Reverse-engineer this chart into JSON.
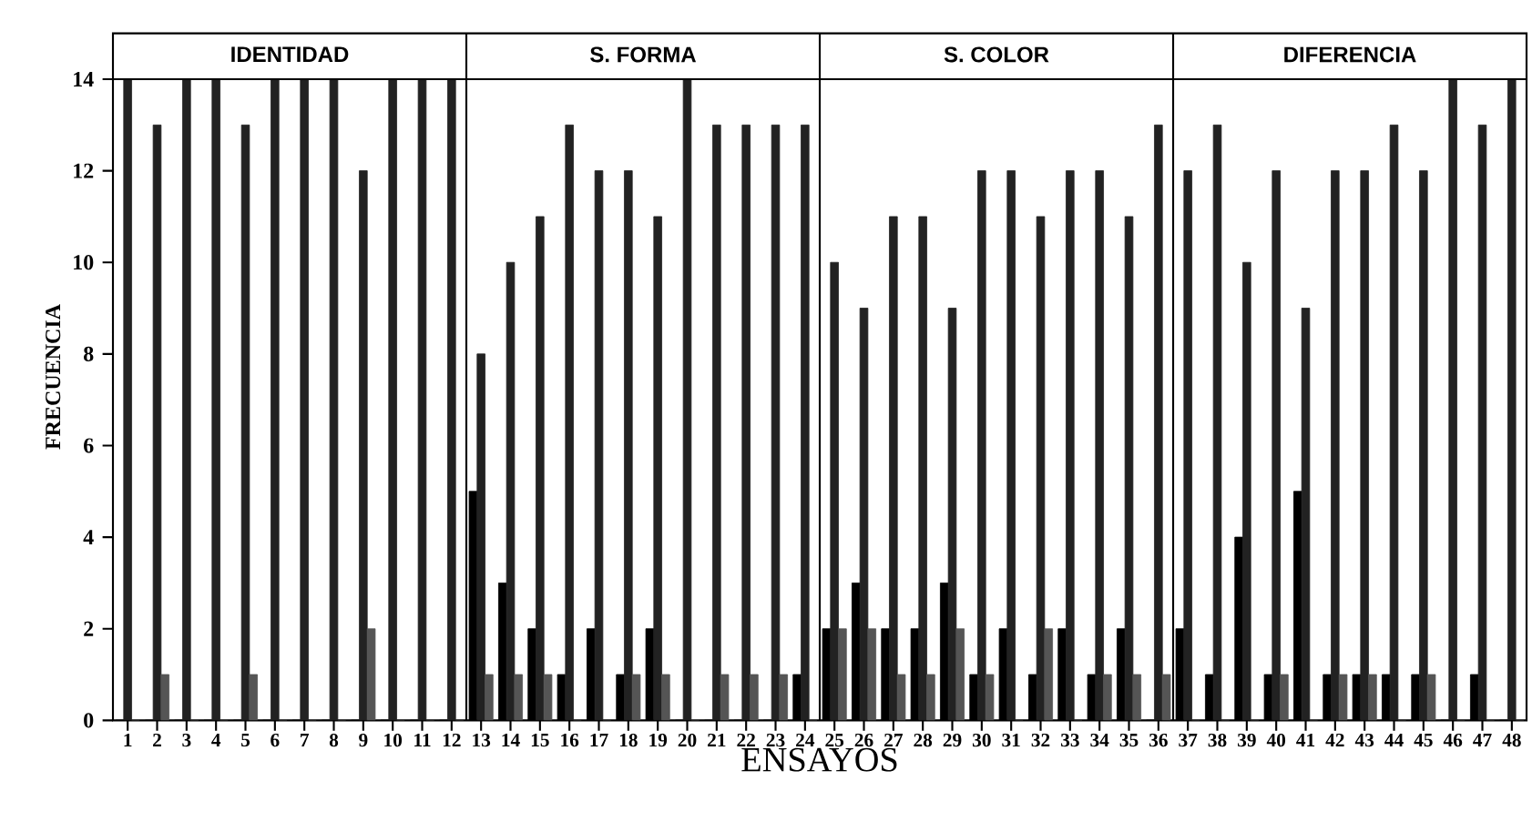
{
  "chart_data": {
    "type": "bar",
    "xlabel": "ENSAYOS",
    "ylabel": "FRECUENCIA",
    "x": [
      1,
      2,
      3,
      4,
      5,
      6,
      7,
      8,
      9,
      10,
      11,
      12,
      13,
      14,
      15,
      16,
      17,
      18,
      19,
      20,
      21,
      22,
      23,
      24,
      25,
      26,
      27,
      28,
      29,
      30,
      31,
      32,
      33,
      34,
      35,
      36,
      37,
      38,
      39,
      40,
      41,
      42,
      43,
      44,
      45,
      46,
      47,
      48
    ],
    "xlim": [
      0.5,
      48.5
    ],
    "xticks": [
      1,
      2,
      3,
      4,
      5,
      6,
      7,
      8,
      9,
      10,
      11,
      12,
      13,
      14,
      15,
      16,
      17,
      18,
      19,
      20,
      21,
      22,
      23,
      24,
      25,
      26,
      27,
      28,
      29,
      30,
      31,
      32,
      33,
      34,
      35,
      36,
      37,
      38,
      39,
      40,
      41,
      42,
      43,
      44,
      45,
      46,
      47,
      48
    ],
    "ylim": [
      0,
      15
    ],
    "yticks": [
      0,
      2,
      4,
      6,
      8,
      10,
      12,
      14
    ],
    "series": [
      {
        "color": "#000000",
        "values": [
          0,
          0,
          0,
          0,
          0,
          0,
          0,
          0,
          0,
          0,
          0,
          0,
          5,
          3,
          2,
          1,
          2,
          1,
          2,
          0,
          0,
          0,
          0,
          1,
          2,
          3,
          2,
          2,
          3,
          1,
          2,
          1,
          2,
          1,
          2,
          0,
          2,
          1,
          4,
          1,
          5,
          1,
          1,
          1,
          1,
          0,
          1,
          0
        ]
      },
      {
        "color": "#222222",
        "values": [
          14,
          13,
          14,
          14,
          13,
          14,
          14,
          14,
          12,
          14,
          14,
          14,
          8,
          10,
          11,
          13,
          12,
          12,
          11,
          14,
          13,
          13,
          13,
          13,
          10,
          9,
          11,
          11,
          9,
          12,
          12,
          11,
          12,
          12,
          11,
          13,
          12,
          13,
          10,
          12,
          9,
          12,
          12,
          13,
          12,
          14,
          13,
          14
        ]
      },
      {
        "color": "#555555",
        "values": [
          0,
          1,
          0,
          0,
          1,
          0,
          0,
          0,
          2,
          0,
          0,
          0,
          1,
          1,
          1,
          0,
          0,
          1,
          1,
          0,
          1,
          1,
          1,
          0,
          2,
          2,
          1,
          1,
          2,
          1,
          0,
          2,
          0,
          1,
          1,
          1,
          0,
          0,
          0,
          1,
          0,
          1,
          1,
          0,
          1,
          0,
          0,
          0
        ]
      }
    ],
    "ref_lines": [
      {
        "axis": "y",
        "value": 14
      },
      {
        "axis": "x",
        "value": 12.5
      },
      {
        "axis": "x",
        "value": 24.5
      },
      {
        "axis": "x",
        "value": 36.5
      }
    ],
    "annotations": [
      "IDENTIDAD",
      "S. FORMA",
      "S. COLOR",
      "DIFERENCIA"
    ],
    "grid": false
  }
}
